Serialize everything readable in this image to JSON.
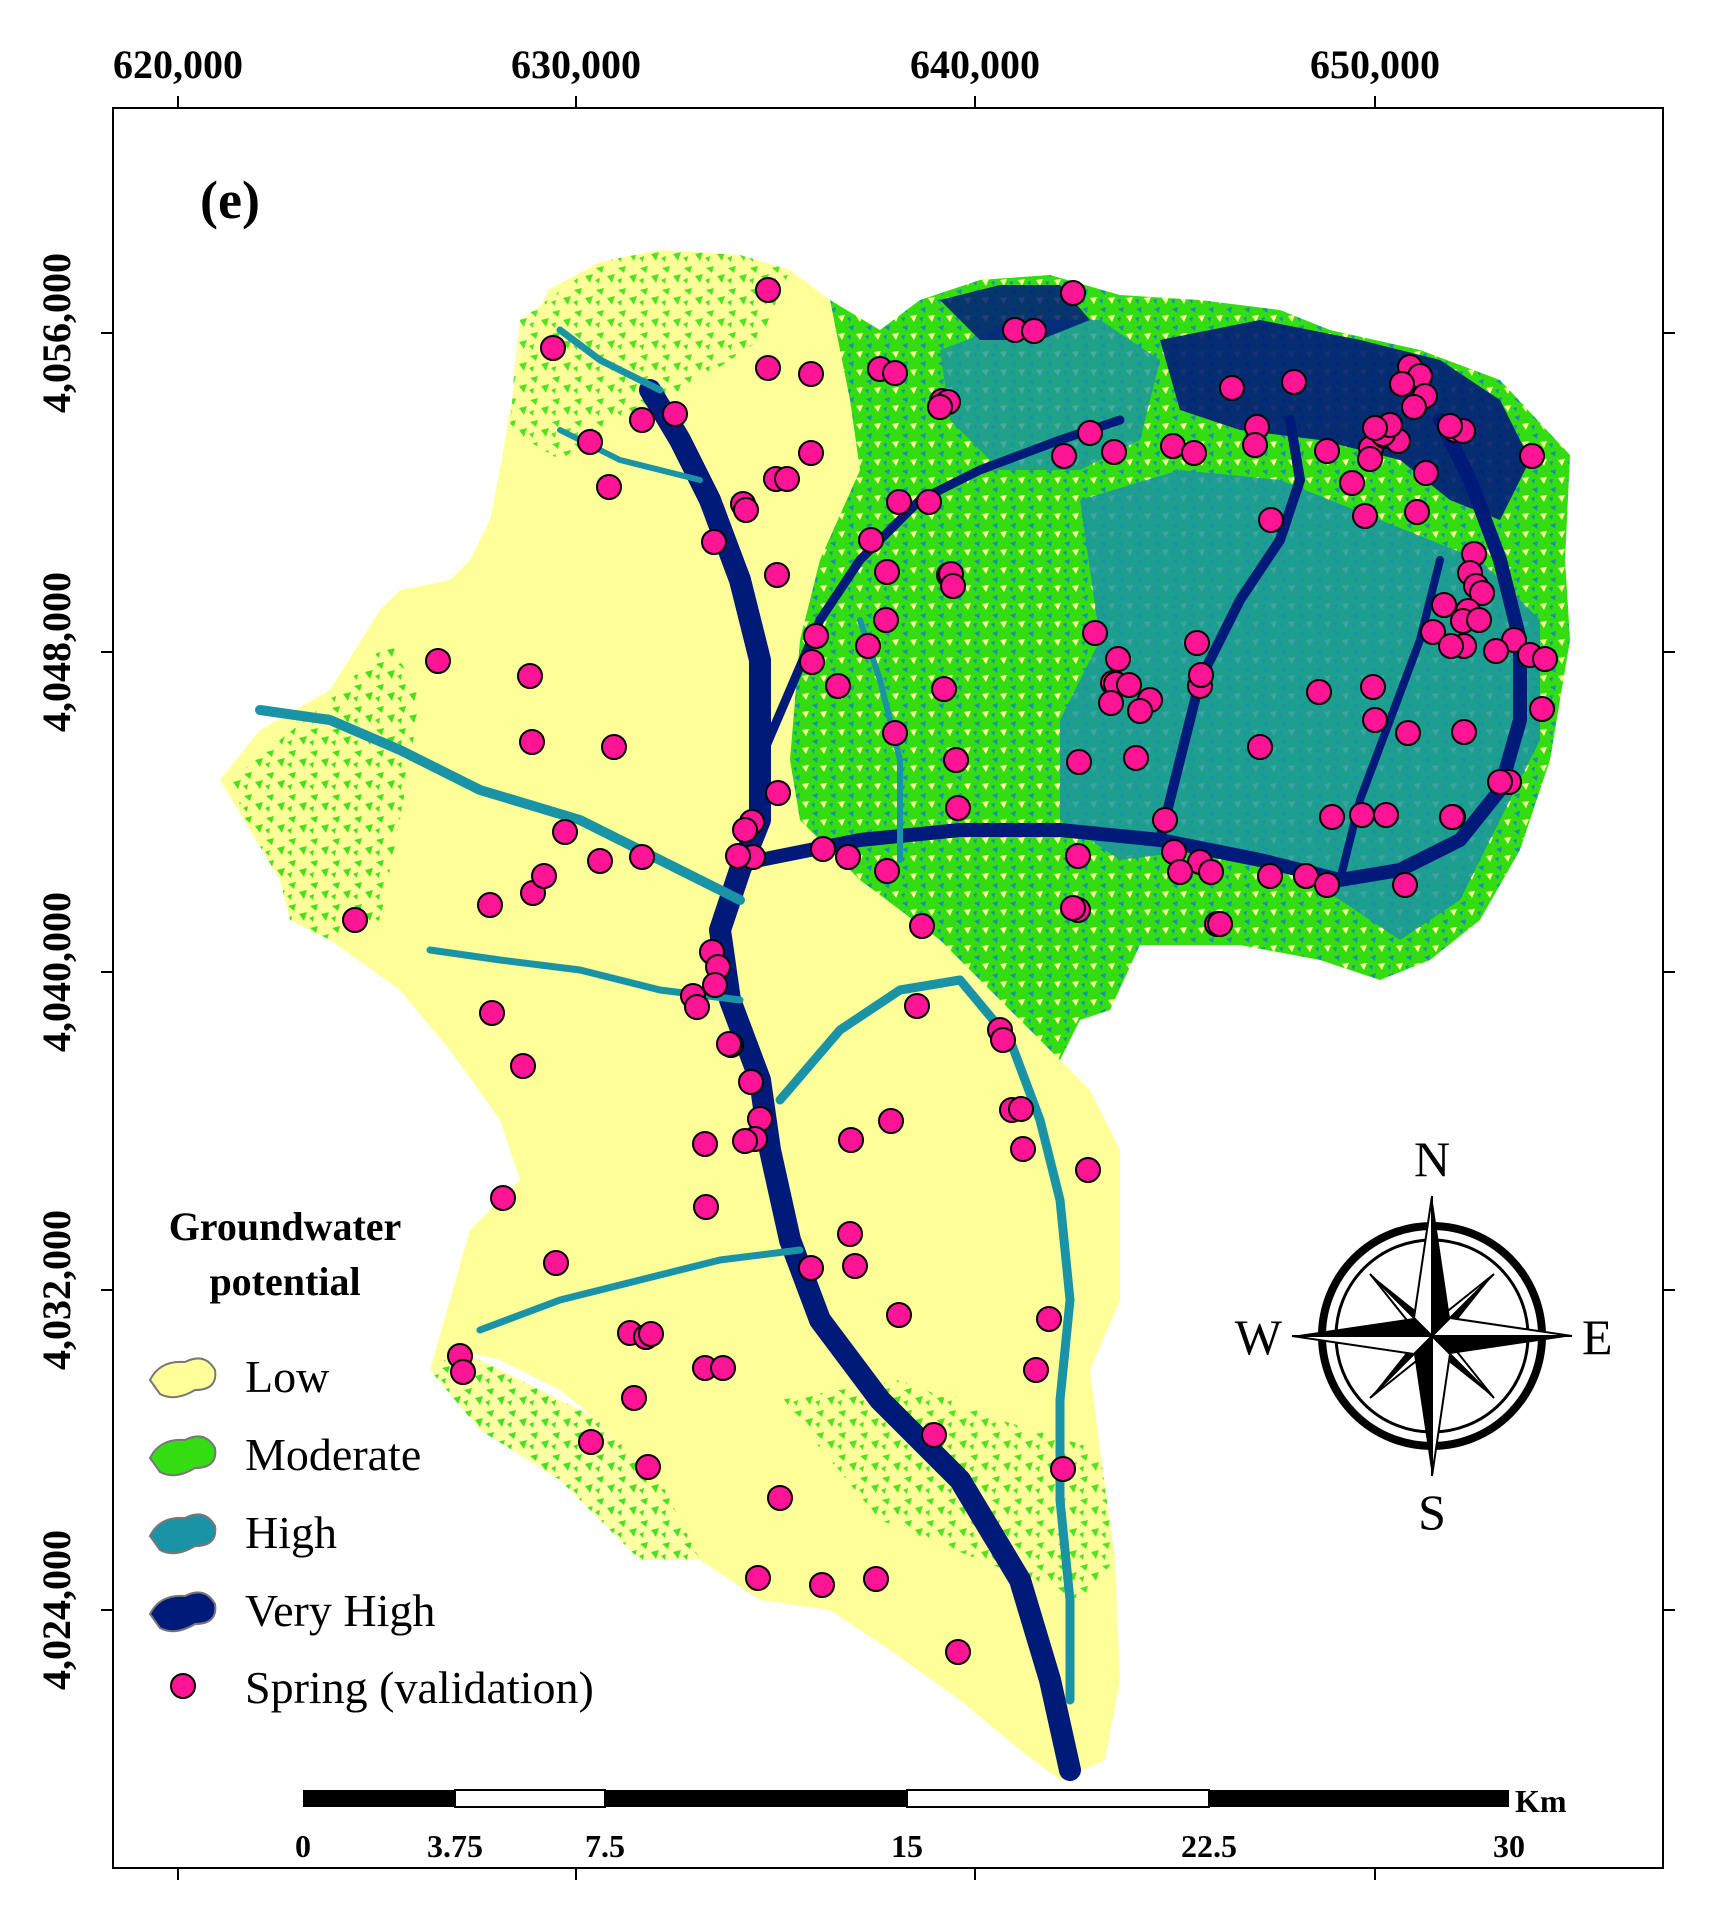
{
  "panel_label": "(e)",
  "axes": {
    "x_ticks": [
      {
        "value": 620000,
        "label": "620,000"
      },
      {
        "value": 630000,
        "label": "630,000"
      },
      {
        "value": 640000,
        "label": "640,000"
      },
      {
        "value": 650000,
        "label": "650,000"
      }
    ],
    "y_ticks": [
      {
        "value": 4056000,
        "label": "4,056,000"
      },
      {
        "value": 4048000,
        "label": "4,048,000"
      },
      {
        "value": 4040000,
        "label": "4,040,000"
      },
      {
        "value": 4032000,
        "label": "4,032,000"
      },
      {
        "value": 4024000,
        "label": "4,024,000"
      }
    ]
  },
  "legend": {
    "title_line1": "Groundwater",
    "title_line2": "potential",
    "items": [
      {
        "label": "Low",
        "color": "#FFFF99",
        "symbol": "polygon"
      },
      {
        "label": "Moderate",
        "color": "#33DD11",
        "symbol": "polygon"
      },
      {
        "label": "High",
        "color": "#1B93A6",
        "symbol": "polygon"
      },
      {
        "label": "Very High",
        "color": "#001A7A",
        "symbol": "polygon"
      },
      {
        "label": "Spring (validation)",
        "color": "#FF1493",
        "symbol": "circle"
      }
    ]
  },
  "north_arrow": {
    "n": "N",
    "s": "S",
    "e": "E",
    "w": "W"
  },
  "scale_bar": {
    "unit": "Km",
    "labels": [
      "0",
      "3.75",
      "7.5",
      "15",
      "22.5",
      "30"
    ]
  },
  "colors": {
    "low": "#FFFF99",
    "moderate": "#33DD11",
    "high": "#1B93A6",
    "very_high": "#001A7A",
    "spring": "#FF1493"
  }
}
